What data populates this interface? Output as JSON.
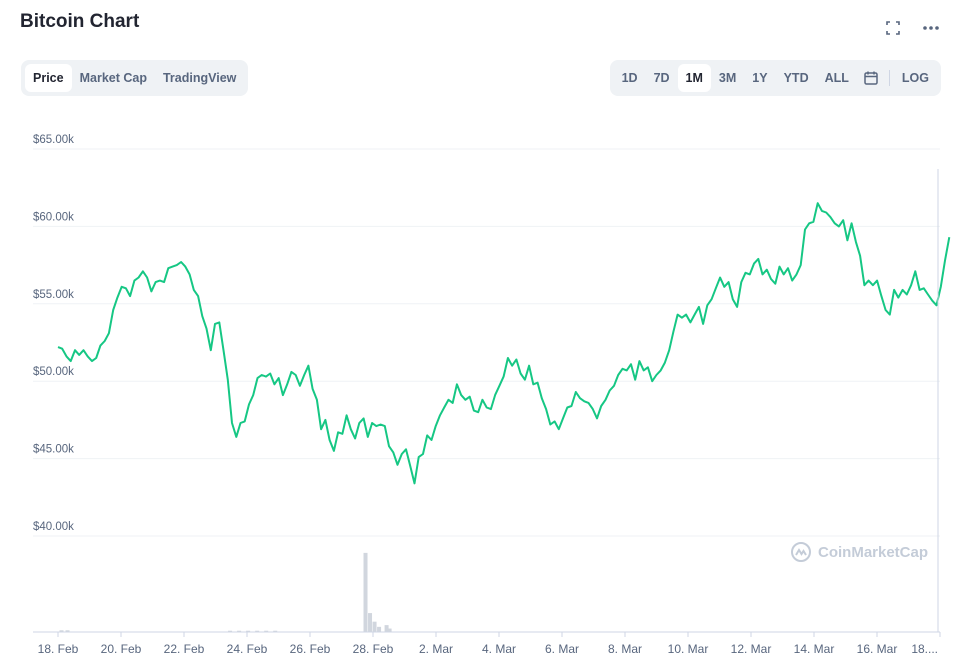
{
  "header": {
    "title": "Bitcoin Chart"
  },
  "left_tabs": [
    "Price",
    "Market Cap",
    "TradingView"
  ],
  "left_active": 0,
  "ranges": [
    "1D",
    "7D",
    "1M",
    "3M",
    "1Y",
    "YTD",
    "ALL"
  ],
  "range_active": 2,
  "log_label": "LOG",
  "watermark": "CoinMarketCap",
  "colors": {
    "line": "#16c784",
    "volume": "#d1d6de",
    "grid": "#eff2f5"
  },
  "chart_data": {
    "type": "line",
    "y_ticks": [
      {
        "value": 65000,
        "label": "$65.00k"
      },
      {
        "value": 60000,
        "label": "$60.00k"
      },
      {
        "value": 55000,
        "label": "$55.00k"
      },
      {
        "value": 50000,
        "label": "$50.00k"
      },
      {
        "value": 45000,
        "label": "$45.00k"
      },
      {
        "value": 40000,
        "label": "$40.00k"
      }
    ],
    "ylim": [
      40000,
      65000
    ],
    "x_ticks": [
      "18. Feb",
      "20. Feb",
      "22. Feb",
      "24. Feb",
      "26. Feb",
      "28. Feb",
      "2. Mar",
      "4. Mar",
      "6. Mar",
      "8. Mar",
      "10. Mar",
      "12. Mar",
      "14. Mar",
      "16. Mar",
      "18...."
    ],
    "x_range_days": [
      0,
      29.5
    ],
    "price": [
      [
        0.0,
        52200
      ],
      [
        0.15,
        52100
      ],
      [
        0.3,
        51600
      ],
      [
        0.45,
        51300
      ],
      [
        0.6,
        52000
      ],
      [
        0.75,
        51700
      ],
      [
        0.9,
        52000
      ],
      [
        1.05,
        51600
      ],
      [
        1.2,
        51300
      ],
      [
        1.35,
        51500
      ],
      [
        1.5,
        52300
      ],
      [
        1.65,
        52600
      ],
      [
        1.8,
        53100
      ],
      [
        1.95,
        54600
      ],
      [
        2.1,
        55400
      ],
      [
        2.25,
        56100
      ],
      [
        2.4,
        56000
      ],
      [
        2.55,
        55500
      ],
      [
        2.7,
        56500
      ],
      [
        2.85,
        56700
      ],
      [
        3.0,
        57100
      ],
      [
        3.15,
        56700
      ],
      [
        3.3,
        55800
      ],
      [
        3.45,
        56400
      ],
      [
        3.6,
        56500
      ],
      [
        3.75,
        56400
      ],
      [
        3.9,
        57300
      ],
      [
        4.05,
        57400
      ],
      [
        4.2,
        57500
      ],
      [
        4.35,
        57700
      ],
      [
        4.5,
        57400
      ],
      [
        4.65,
        56900
      ],
      [
        4.8,
        55900
      ],
      [
        4.95,
        55500
      ],
      [
        5.1,
        54200
      ],
      [
        5.25,
        53400
      ],
      [
        5.4,
        52000
      ],
      [
        5.55,
        53700
      ],
      [
        5.7,
        53800
      ],
      [
        5.85,
        52000
      ],
      [
        6.0,
        50100
      ],
      [
        6.15,
        47300
      ],
      [
        6.3,
        46400
      ],
      [
        6.45,
        47300
      ],
      [
        6.6,
        47400
      ],
      [
        6.75,
        48500
      ],
      [
        6.9,
        49100
      ],
      [
        7.05,
        50200
      ],
      [
        7.2,
        50400
      ],
      [
        7.35,
        50300
      ],
      [
        7.5,
        50500
      ],
      [
        7.65,
        49800
      ],
      [
        7.8,
        50200
      ],
      [
        7.95,
        49100
      ],
      [
        8.1,
        49800
      ],
      [
        8.25,
        50600
      ],
      [
        8.4,
        50400
      ],
      [
        8.55,
        49700
      ],
      [
        8.7,
        50400
      ],
      [
        8.85,
        51000
      ],
      [
        9.0,
        49500
      ],
      [
        9.15,
        48800
      ],
      [
        9.3,
        46900
      ],
      [
        9.45,
        47500
      ],
      [
        9.6,
        46200
      ],
      [
        9.75,
        45500
      ],
      [
        9.9,
        46700
      ],
      [
        10.05,
        46600
      ],
      [
        10.2,
        47800
      ],
      [
        10.35,
        46900
      ],
      [
        10.5,
        46300
      ],
      [
        10.65,
        47300
      ],
      [
        10.8,
        47600
      ],
      [
        10.95,
        46400
      ],
      [
        11.1,
        47300
      ],
      [
        11.25,
        47100
      ],
      [
        11.4,
        47200
      ],
      [
        11.55,
        47100
      ],
      [
        11.7,
        45800
      ],
      [
        11.85,
        45400
      ],
      [
        12.0,
        44600
      ],
      [
        12.15,
        45300
      ],
      [
        12.3,
        45600
      ],
      [
        12.45,
        44500
      ],
      [
        12.6,
        43400
      ],
      [
        12.75,
        45100
      ],
      [
        12.9,
        45300
      ],
      [
        13.05,
        46500
      ],
      [
        13.2,
        46200
      ],
      [
        13.35,
        47100
      ],
      [
        13.5,
        47800
      ],
      [
        13.65,
        48300
      ],
      [
        13.8,
        48800
      ],
      [
        13.95,
        48600
      ],
      [
        14.1,
        49800
      ],
      [
        14.25,
        49100
      ],
      [
        14.4,
        48800
      ],
      [
        14.55,
        49000
      ],
      [
        14.7,
        48100
      ],
      [
        14.85,
        48000
      ],
      [
        15.0,
        48800
      ],
      [
        15.15,
        48300
      ],
      [
        15.3,
        48200
      ],
      [
        15.45,
        49100
      ],
      [
        15.6,
        49700
      ],
      [
        15.75,
        50300
      ],
      [
        15.9,
        51500
      ],
      [
        16.05,
        51000
      ],
      [
        16.2,
        51400
      ],
      [
        16.35,
        50500
      ],
      [
        16.5,
        50100
      ],
      [
        16.65,
        51000
      ],
      [
        16.8,
        49800
      ],
      [
        16.95,
        49900
      ],
      [
        17.1,
        48900
      ],
      [
        17.25,
        48200
      ],
      [
        17.4,
        47200
      ],
      [
        17.55,
        47400
      ],
      [
        17.7,
        46900
      ],
      [
        17.85,
        47600
      ],
      [
        18.0,
        48300
      ],
      [
        18.15,
        48400
      ],
      [
        18.3,
        49300
      ],
      [
        18.45,
        48900
      ],
      [
        18.6,
        48700
      ],
      [
        18.75,
        48600
      ],
      [
        18.9,
        48200
      ],
      [
        19.05,
        47600
      ],
      [
        19.2,
        48400
      ],
      [
        19.35,
        48800
      ],
      [
        19.5,
        49400
      ],
      [
        19.65,
        49700
      ],
      [
        19.8,
        50400
      ],
      [
        19.95,
        50800
      ],
      [
        20.1,
        50700
      ],
      [
        20.25,
        51100
      ],
      [
        20.4,
        50100
      ],
      [
        20.55,
        51300
      ],
      [
        20.7,
        50700
      ],
      [
        20.85,
        50900
      ],
      [
        21.0,
        50000
      ],
      [
        21.15,
        50400
      ],
      [
        21.3,
        50700
      ],
      [
        21.45,
        51200
      ],
      [
        21.6,
        52000
      ],
      [
        21.75,
        53200
      ],
      [
        21.9,
        54300
      ],
      [
        22.05,
        54100
      ],
      [
        22.2,
        54300
      ],
      [
        22.35,
        53800
      ],
      [
        22.5,
        54300
      ],
      [
        22.65,
        54800
      ],
      [
        22.8,
        53700
      ],
      [
        22.95,
        54900
      ],
      [
        23.1,
        55300
      ],
      [
        23.25,
        56000
      ],
      [
        23.4,
        56700
      ],
      [
        23.55,
        56100
      ],
      [
        23.7,
        56400
      ],
      [
        23.85,
        55300
      ],
      [
        24.0,
        54800
      ],
      [
        24.15,
        56400
      ],
      [
        24.3,
        57000
      ],
      [
        24.45,
        56900
      ],
      [
        24.6,
        57600
      ],
      [
        24.75,
        57900
      ],
      [
        24.9,
        56900
      ],
      [
        25.05,
        57200
      ],
      [
        25.2,
        56600
      ],
      [
        25.35,
        56300
      ],
      [
        25.5,
        57400
      ],
      [
        25.65,
        56900
      ],
      [
        25.8,
        57300
      ],
      [
        25.95,
        56500
      ],
      [
        26.1,
        56900
      ],
      [
        26.25,
        57500
      ],
      [
        26.4,
        59800
      ],
      [
        26.55,
        60200
      ],
      [
        26.7,
        60300
      ],
      [
        26.85,
        61500
      ],
      [
        27.0,
        61000
      ],
      [
        27.15,
        60900
      ],
      [
        27.3,
        60600
      ],
      [
        27.45,
        60200
      ],
      [
        27.6,
        60000
      ],
      [
        27.75,
        60400
      ],
      [
        27.9,
        59100
      ],
      [
        28.05,
        60200
      ],
      [
        28.2,
        59000
      ],
      [
        28.35,
        58100
      ],
      [
        28.5,
        56200
      ],
      [
        28.65,
        56500
      ],
      [
        28.8,
        56200
      ],
      [
        28.95,
        56500
      ],
      [
        29.1,
        55500
      ],
      [
        29.25,
        54600
      ],
      [
        29.4,
        54300
      ],
      [
        29.55,
        55900
      ],
      [
        29.7,
        55400
      ],
      [
        29.85,
        55900
      ],
      [
        30.0,
        55600
      ],
      [
        30.15,
        56200
      ],
      [
        30.3,
        57100
      ],
      [
        30.45,
        55900
      ],
      [
        30.6,
        56000
      ],
      [
        30.75,
        55600
      ],
      [
        30.9,
        55200
      ],
      [
        31.05,
        54900
      ],
      [
        31.2,
        56100
      ],
      [
        31.35,
        57800
      ],
      [
        31.5,
        59300
      ]
    ],
    "volume": [
      [
        0.1,
        2
      ],
      [
        0.3,
        2
      ],
      [
        5.7,
        1.5
      ],
      [
        6.0,
        1.5
      ],
      [
        6.3,
        1.5
      ],
      [
        6.6,
        1.5
      ],
      [
        6.9,
        1.5
      ],
      [
        7.2,
        1.5
      ],
      [
        10.2,
        92
      ],
      [
        10.35,
        22
      ],
      [
        10.5,
        12
      ],
      [
        10.65,
        6
      ],
      [
        10.9,
        8
      ],
      [
        11.0,
        4
      ]
    ],
    "volume_max": 100
  }
}
